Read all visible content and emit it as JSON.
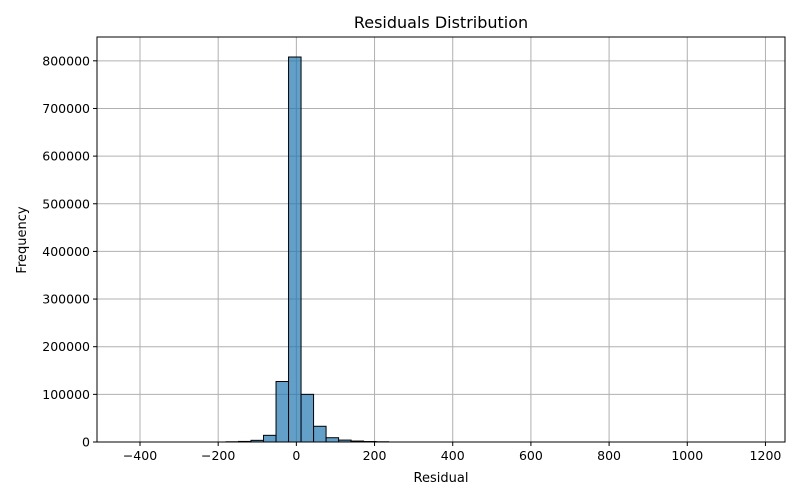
{
  "chart_data": {
    "type": "bar",
    "subtype": "histogram",
    "title": "Residuals Distribution",
    "xlabel": "Residual",
    "ylabel": "Frequency",
    "xlim": [
      -510,
      1250
    ],
    "ylim": [
      0,
      850000
    ],
    "x_ticks": [
      -400,
      -200,
      0,
      200,
      400,
      600,
      800,
      1000,
      1200
    ],
    "x_tick_labels": [
      "−400",
      "−200",
      "0",
      "200",
      "400",
      "600",
      "800",
      "1000",
      "1200"
    ],
    "y_ticks": [
      0,
      100000,
      200000,
      300000,
      400000,
      500000,
      600000,
      700000,
      800000
    ],
    "y_tick_labels": [
      "0",
      "100000",
      "200000",
      "300000",
      "400000",
      "500000",
      "600000",
      "700000",
      "800000"
    ],
    "grid": true,
    "bar_color": "#1f77b4",
    "bar_alpha": 0.7,
    "edge_color": "#000000",
    "bins": [
      {
        "start": -180,
        "end": -148,
        "value": 500
      },
      {
        "start": -148,
        "end": -116,
        "value": 1200
      },
      {
        "start": -116,
        "end": -84,
        "value": 3500
      },
      {
        "start": -84,
        "end": -52,
        "value": 14000
      },
      {
        "start": -52,
        "end": -20,
        "value": 127000
      },
      {
        "start": -20,
        "end": 12,
        "value": 808000
      },
      {
        "start": 12,
        "end": 44,
        "value": 100000
      },
      {
        "start": 44,
        "end": 76,
        "value": 33000
      },
      {
        "start": 76,
        "end": 108,
        "value": 9000
      },
      {
        "start": 108,
        "end": 140,
        "value": 4000
      },
      {
        "start": 140,
        "end": 172,
        "value": 2000
      },
      {
        "start": 172,
        "end": 204,
        "value": 1000
      },
      {
        "start": 204,
        "end": 236,
        "value": 500
      }
    ]
  }
}
